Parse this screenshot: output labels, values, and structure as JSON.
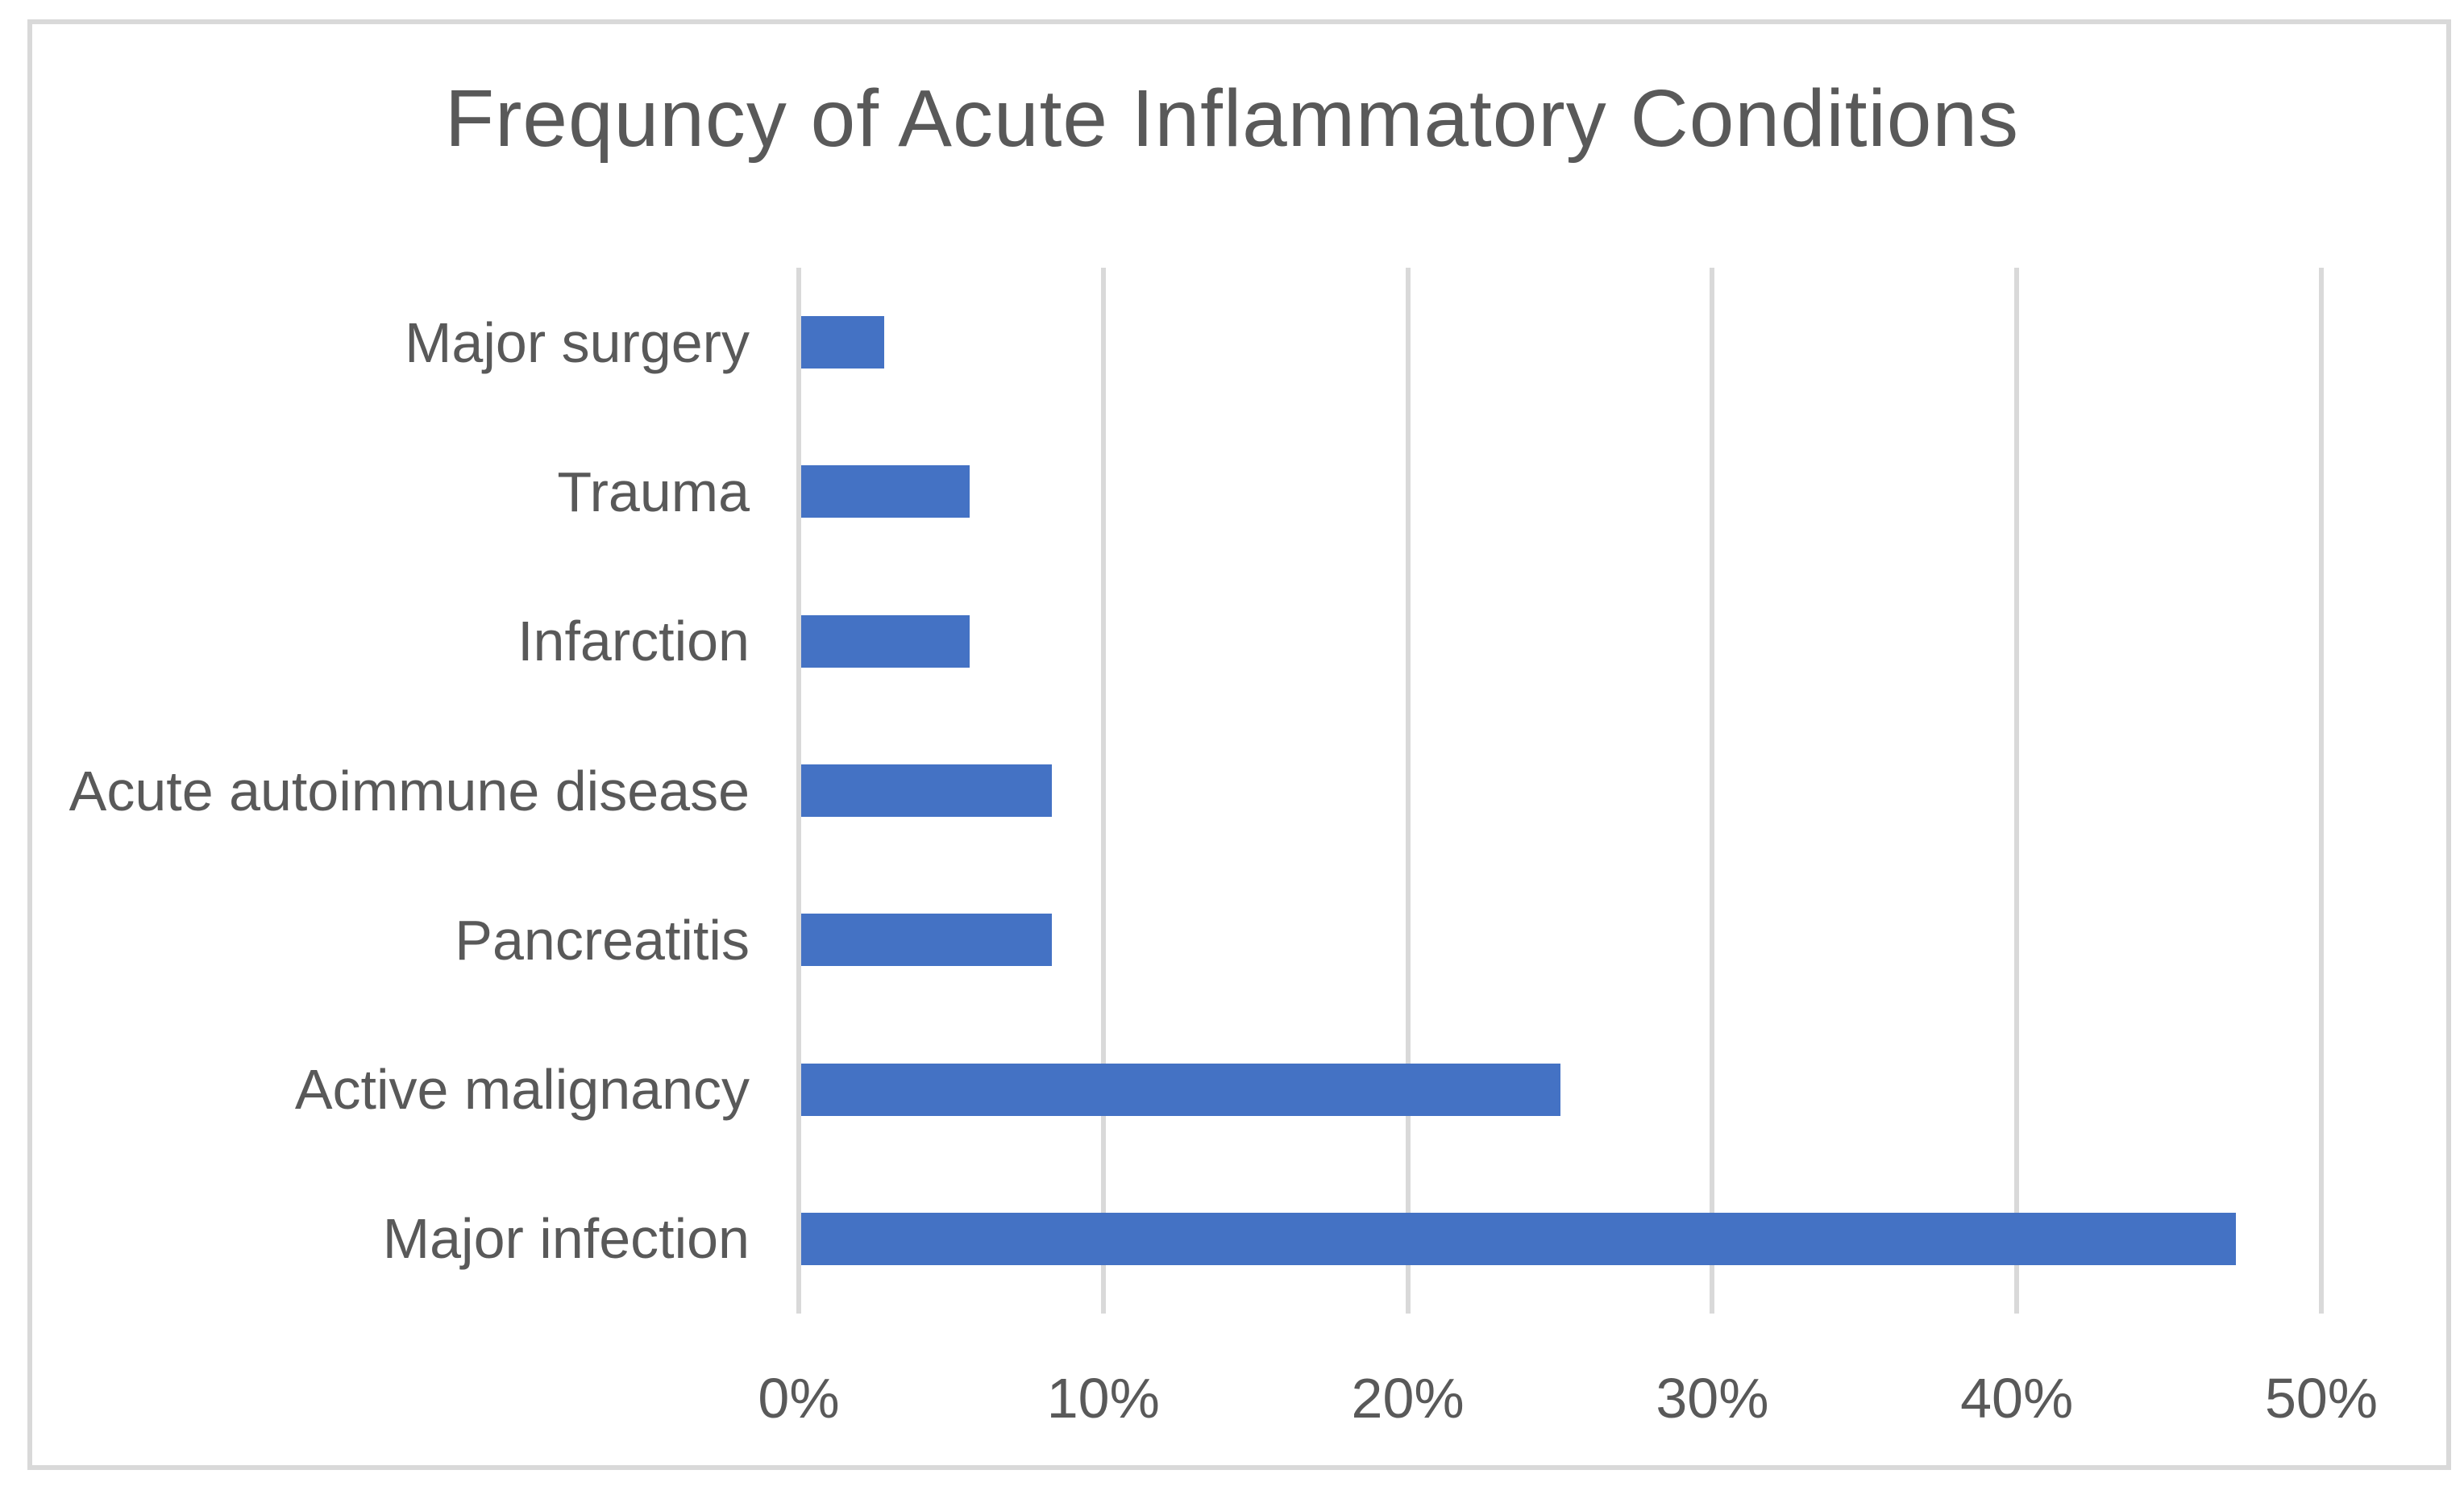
{
  "page": {
    "background": "#ffffff",
    "frame_border_color": "#D9D9D9"
  },
  "colors": {
    "bar": "#4472C4",
    "gridline": "#D9D9D9",
    "text": "#595959"
  },
  "chart_data": {
    "type": "bar",
    "orientation": "horizontal",
    "title": "Frequncy of Acute Inflammatory Conditions",
    "categories": [
      "Major surgery",
      "Trauma",
      "Infarction",
      "Acute autoimmune disease",
      "Pancreatitis",
      "Active malignancy",
      "Major infection"
    ],
    "values": [
      2.8,
      5.6,
      5.6,
      8.3,
      8.3,
      25.0,
      47.2
    ],
    "value_unit": "%",
    "xlabel": "",
    "ylabel": "",
    "xlim": [
      0,
      50
    ],
    "x_ticks": [
      "0%",
      "10%",
      "20%",
      "30%",
      "40%",
      "50%"
    ],
    "grid": "vertical-only",
    "legend": "none",
    "bar_color": "#4472C4"
  }
}
